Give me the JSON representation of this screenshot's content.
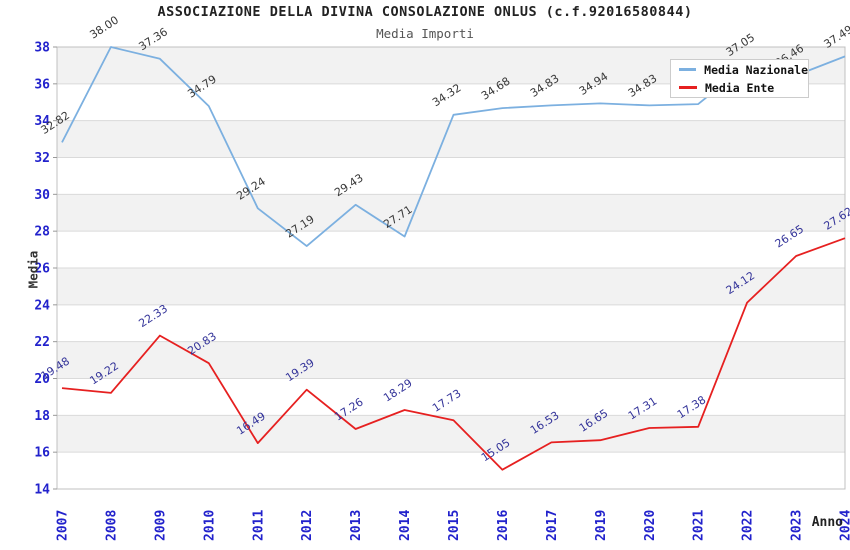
{
  "header": {
    "title": "ASSOCIAZIONE DELLA DIVINA CONSOLAZIONE ONLUS (c.f.92016580844)",
    "subtitle": "Media Importi"
  },
  "axes": {
    "y_label": "Media",
    "x_label": "Anno",
    "y_tick_labels": [
      "38",
      "36",
      "34",
      "32",
      "30",
      "28",
      "26",
      "24",
      "22",
      "20",
      "18",
      "16",
      "14"
    ],
    "x_tick_labels": [
      "2007",
      "2008",
      "2009",
      "2010",
      "2011",
      "2012",
      "2013",
      "2014",
      "2015",
      "2016",
      "2017",
      "2019",
      "2020",
      "2021",
      "2022",
      "2023",
      "2024"
    ]
  },
  "legend": {
    "items": [
      {
        "label": "Media Nazionale",
        "color": "#7cb0e0"
      },
      {
        "label": "Media Ente",
        "color": "#e62020"
      }
    ]
  },
  "chart_data": {
    "type": "line",
    "title": "ASSOCIAZIONE DELLA DIVINA CONSOLAZIONE ONLUS (c.f.92016580844)",
    "subtitle": "Media Importi",
    "xlabel": "Anno",
    "ylabel": "Media",
    "categories": [
      "2007",
      "2008",
      "2009",
      "2010",
      "2011",
      "2012",
      "2013",
      "2014",
      "2015",
      "2016",
      "2017",
      "2019",
      "2020",
      "2021",
      "2022",
      "2023",
      "2024"
    ],
    "series": [
      {
        "name": "Media Nazionale",
        "color": "#7cb0e0",
        "label_color": "#383838",
        "values": [
          32.82,
          38.0,
          37.36,
          34.79,
          29.24,
          27.19,
          29.43,
          27.71,
          34.32,
          34.68,
          34.83,
          34.94,
          34.83,
          34.9,
          37.05,
          36.46,
          37.49
        ],
        "labels": [
          "32.82",
          "38.00",
          "37.36",
          "34.79",
          "29.24",
          "27.19",
          "29.43",
          "27.71",
          "34.32",
          "34.68",
          "34.83",
          "34.94",
          "34.83",
          "",
          "37.05",
          "36.46",
          "37.49"
        ]
      },
      {
        "name": "Media Ente",
        "color": "#e62020",
        "label_color": "#333399",
        "values": [
          19.48,
          19.22,
          22.33,
          20.83,
          16.49,
          19.39,
          17.26,
          18.29,
          17.73,
          15.05,
          16.53,
          16.65,
          17.31,
          17.38,
          24.12,
          26.65,
          27.62
        ],
        "labels": [
          "19.48",
          "19.22",
          "22.33",
          "20.83",
          "16.49",
          "19.39",
          "17.26",
          "18.29",
          "17.73",
          "15.05",
          "16.53",
          "16.65",
          "17.31",
          "17.38",
          "24.12",
          "26.65",
          "27.62"
        ]
      }
    ],
    "ylim": [
      14,
      38
    ],
    "y_tick_step": 2,
    "grid": true,
    "band_colors": {
      "gray": "#f2f2f2",
      "white": "#ffffff"
    },
    "gridline_color": "#dadada",
    "border_color": "#c0c0c0",
    "tick_color": "#999999",
    "axis_tick_label_color": "#2222cc",
    "legend_position": "top-right"
  }
}
